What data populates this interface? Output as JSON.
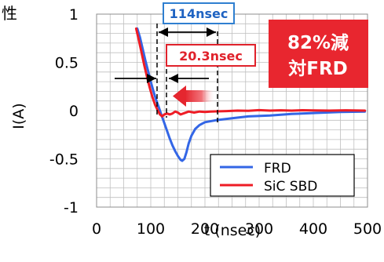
{
  "chart_data": {
    "type": "line",
    "title": "性",
    "xlabel": "t (nsec)",
    "ylabel": "I(A)",
    "xlim": [
      0,
      500
    ],
    "ylim": [
      -1,
      1
    ],
    "x_ticks": [
      0,
      100,
      200,
      300,
      400,
      500
    ],
    "x_tick_labels": [
      "0",
      "100",
      "200",
      "300",
      "400",
      "500"
    ],
    "y_ticks": [
      1,
      0.5,
      0,
      -0.5,
      -1
    ],
    "y_tick_labels": [
      "1",
      "0.5",
      "0",
      "-0.5",
      "-1"
    ],
    "grid": true,
    "legend_position": "bottom-right",
    "series": [
      {
        "name": "FRD",
        "color": "#3366e6",
        "points": [
          [
            75,
            0.85
          ],
          [
            80,
            0.76
          ],
          [
            85,
            0.64
          ],
          [
            90,
            0.52
          ],
          [
            95,
            0.41
          ],
          [
            100,
            0.3
          ],
          [
            105,
            0.2
          ],
          [
            110,
            0.11
          ],
          [
            115,
            0.03
          ],
          [
            120,
            -0.05
          ],
          [
            125,
            -0.13
          ],
          [
            130,
            -0.21
          ],
          [
            135,
            -0.29
          ],
          [
            140,
            -0.36
          ],
          [
            145,
            -0.42
          ],
          [
            150,
            -0.47
          ],
          [
            155,
            -0.51
          ],
          [
            158,
            -0.52
          ],
          [
            162,
            -0.5
          ],
          [
            166,
            -0.43
          ],
          [
            170,
            -0.34
          ],
          [
            175,
            -0.26
          ],
          [
            182,
            -0.19
          ],
          [
            190,
            -0.15
          ],
          [
            200,
            -0.12
          ],
          [
            220,
            -0.1
          ],
          [
            250,
            -0.08
          ],
          [
            280,
            -0.06
          ],
          [
            320,
            -0.05
          ],
          [
            360,
            -0.035
          ],
          [
            400,
            -0.025
          ],
          [
            450,
            -0.015
          ],
          [
            495,
            -0.01
          ]
        ]
      },
      {
        "name": "SiC SBD",
        "color": "#ee1c25",
        "points": [
          [
            73,
            0.85
          ],
          [
            78,
            0.73
          ],
          [
            83,
            0.6
          ],
          [
            88,
            0.47
          ],
          [
            93,
            0.35
          ],
          [
            98,
            0.24
          ],
          [
            103,
            0.14
          ],
          [
            108,
            0.06
          ],
          [
            113,
            0.0
          ],
          [
            117,
            -0.04
          ],
          [
            121,
            -0.06
          ],
          [
            125,
            -0.04
          ],
          [
            130,
            -0.03
          ],
          [
            135,
            -0.04
          ],
          [
            140,
            -0.03
          ],
          [
            145,
            -0.01
          ],
          [
            150,
            -0.02
          ],
          [
            155,
            -0.04
          ],
          [
            160,
            -0.03
          ],
          [
            170,
            -0.01
          ],
          [
            180,
            -0.02
          ],
          [
            190,
            -0.01
          ],
          [
            200,
            -0.015
          ],
          [
            210,
            -0.01
          ],
          [
            220,
            -0.008
          ],
          [
            240,
            -0.005
          ],
          [
            260,
            0.0
          ],
          [
            280,
            -0.002
          ],
          [
            300,
            0.005
          ],
          [
            320,
            0.0
          ],
          [
            340,
            0.003
          ],
          [
            360,
            0.0
          ],
          [
            380,
            0.004
          ],
          [
            400,
            0.002
          ],
          [
            430,
            0.0
          ],
          [
            460,
            0.003
          ],
          [
            495,
            0.0
          ]
        ]
      }
    ],
    "annotations": {
      "frd_time": "114nsec",
      "sbd_time": "20.3nsec",
      "reduction_line1": "82%減",
      "reduction_line2": "対FRD"
    }
  },
  "colors": {
    "axis_box": "#000000",
    "grid": "#bfbfbf",
    "frd": "#3366e6",
    "sbd": "#ee1c25",
    "callout_bg": "#e8262f",
    "callout_text": "#ffffff",
    "label_114_text": "#1f63c2",
    "label_114_border": "#2f7fd0",
    "label_203_text": "#e0222b",
    "label_203_border": "#e0222b"
  }
}
